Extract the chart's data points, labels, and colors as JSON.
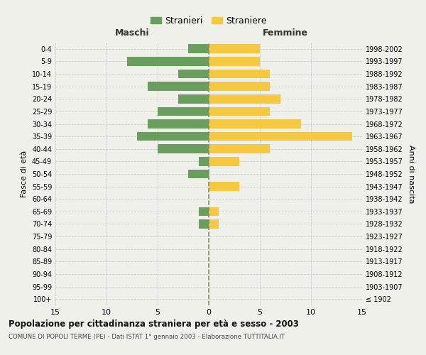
{
  "age_groups": [
    "100+",
    "95-99",
    "90-94",
    "85-89",
    "80-84",
    "75-79",
    "70-74",
    "65-69",
    "60-64",
    "55-59",
    "50-54",
    "45-49",
    "40-44",
    "35-39",
    "30-34",
    "25-29",
    "20-24",
    "15-19",
    "10-14",
    "5-9",
    "0-4"
  ],
  "birth_years": [
    "≤ 1902",
    "1903-1907",
    "1908-1912",
    "1913-1917",
    "1918-1922",
    "1923-1927",
    "1928-1932",
    "1933-1937",
    "1938-1942",
    "1943-1947",
    "1948-1952",
    "1953-1957",
    "1958-1962",
    "1963-1967",
    "1968-1972",
    "1973-1977",
    "1978-1982",
    "1983-1987",
    "1988-1992",
    "1993-1997",
    "1998-2002"
  ],
  "males": [
    0,
    0,
    0,
    0,
    0,
    0,
    1,
    1,
    0,
    0,
    2,
    1,
    5,
    7,
    6,
    5,
    3,
    6,
    3,
    8,
    2
  ],
  "females": [
    0,
    0,
    0,
    0,
    0,
    0,
    1,
    1,
    0,
    3,
    0,
    3,
    6,
    14,
    9,
    6,
    7,
    6,
    6,
    5,
    5
  ],
  "male_color": "#6a9e5e",
  "female_color": "#f5c842",
  "background_color": "#f0f0eb",
  "grid_color": "#cccccc",
  "centerline_color": "#888866",
  "title": "Popolazione per cittadinanza straniera per età e sesso - 2003",
  "subtitle": "COMUNE DI POPOLI TERME (PE) - Dati ISTAT 1° gennaio 2003 - Elaborazione TUTTITALIA.IT",
  "xlabel_left": "Maschi",
  "xlabel_right": "Femmine",
  "ylabel_left": "Fasce di età",
  "ylabel_right": "Anni di nascita",
  "legend_stranieri": "Stranieri",
  "legend_straniere": "Straniere",
  "xlim": 15,
  "xtick_labels": [
    "15",
    "10",
    "5",
    "0",
    "5",
    "10",
    "15"
  ]
}
